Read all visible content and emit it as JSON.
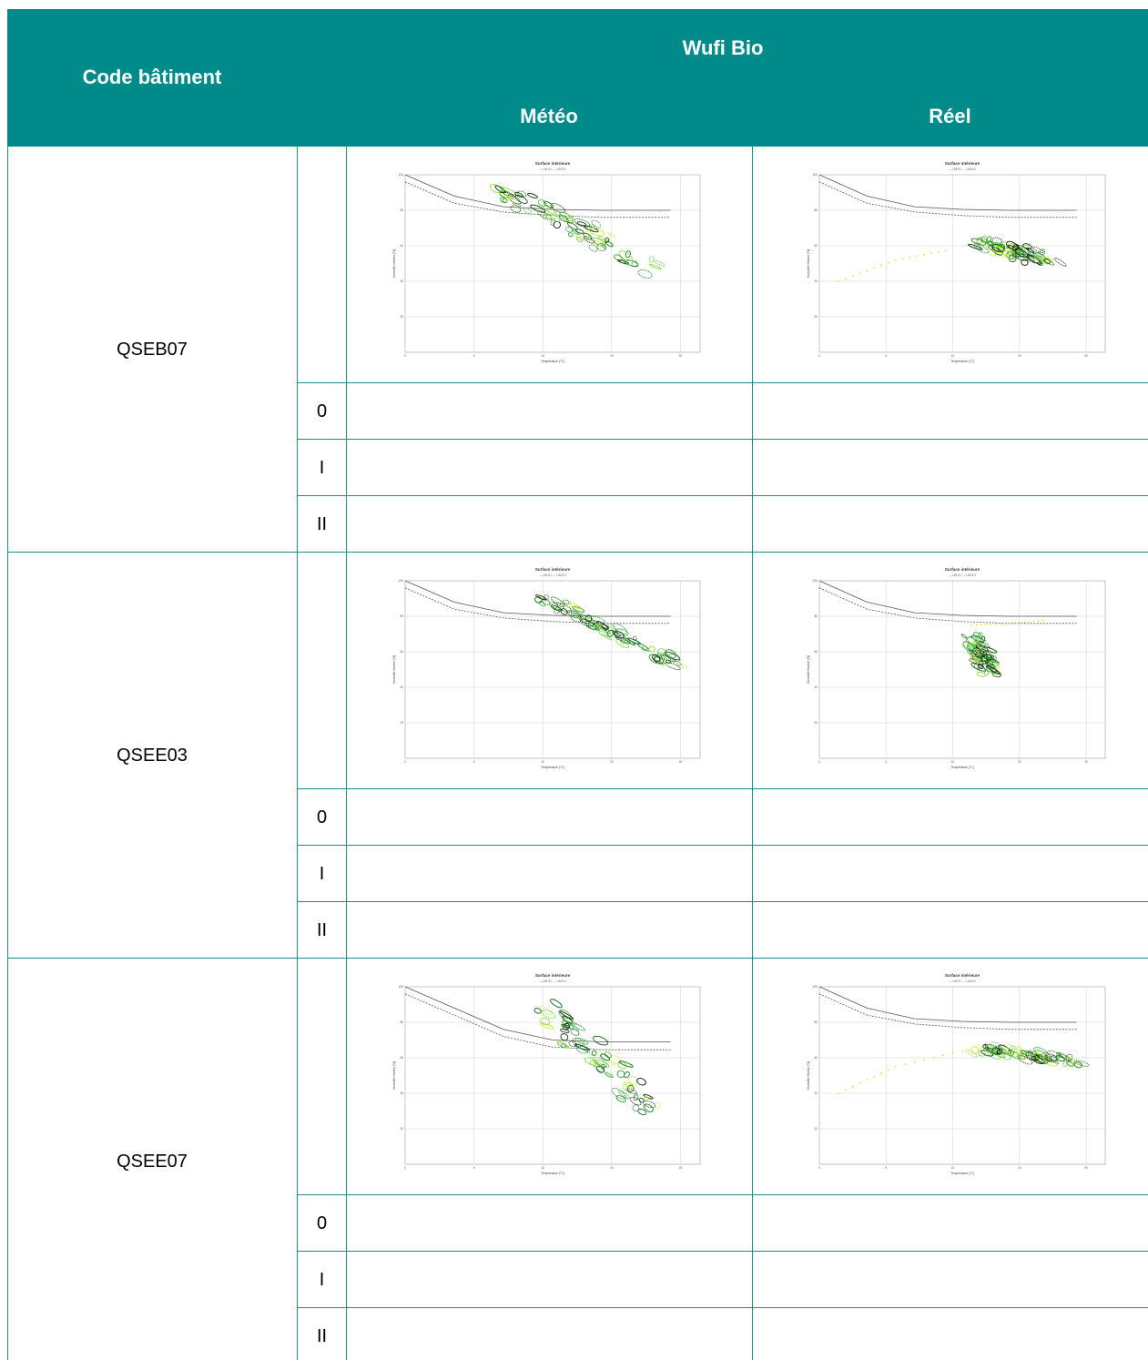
{
  "header": {
    "col_code": "Code bâtiment",
    "col_group": "Wufi Bio",
    "col_meteo": "Météo",
    "col_reel": "Réel"
  },
  "buildings": [
    {
      "code": "QSEB07",
      "classes": [
        "0",
        "I",
        "II"
      ]
    },
    {
      "code": "QSEE03",
      "classes": [
        "0",
        "I",
        "II"
      ]
    },
    {
      "code": "QSEE07",
      "classes": [
        "0",
        "I",
        "II"
      ]
    }
  ],
  "plot_text": {
    "title": "Surface intérieure",
    "legend": "— LIM B I   --- LIM B II",
    "xlabel": "Température [°C]",
    "ylabel": "Humidité relative [%]"
  },
  "chart_data": [
    {
      "type": "scatter",
      "title": "Surface intérieure",
      "xlabel": "Température [°C]",
      "ylabel": "Humidité relative [%]",
      "xlim": [
        0,
        30
      ],
      "ylim": [
        0,
        100
      ],
      "x_ticks": [
        "0",
        "5",
        "10",
        "15",
        "20"
      ],
      "y_ticks": [
        "20",
        "40",
        "60",
        "80",
        "100"
      ],
      "cloud": {
        "from": [
          10,
          92
        ],
        "to": [
          27,
          43
        ],
        "spread": 7
      },
      "curve_lim_b_i": [
        [
          0,
          100
        ],
        [
          5,
          88
        ],
        [
          10,
          82
        ],
        [
          15,
          80.5
        ],
        [
          20,
          80
        ],
        [
          27,
          80
        ]
      ],
      "curve_lim_b_ii": [
        [
          0,
          96
        ],
        [
          5,
          84
        ],
        [
          10,
          79
        ],
        [
          15,
          77
        ],
        [
          20,
          76
        ],
        [
          27,
          76
        ]
      ]
    },
    {
      "type": "scatter",
      "title": "Surface intérieure",
      "xlabel": "Température [°C]",
      "ylabel": "Humidité relative [%]",
      "xlim": [
        0,
        30
      ],
      "ylim": [
        0,
        100
      ],
      "x_ticks": [
        "0",
        "5",
        "10",
        "15",
        "20"
      ],
      "y_ticks": [
        "20",
        "40",
        "60",
        "80",
        "100"
      ],
      "cloud": {
        "from": [
          17,
          62
        ],
        "to": [
          24,
          52
        ],
        "spread": 6
      },
      "yellow_trail": [
        [
          2,
          40
        ],
        [
          8,
          52
        ],
        [
          14,
          58
        ]
      ],
      "curve_lim_b_i": [
        [
          0,
          100
        ],
        [
          5,
          88
        ],
        [
          10,
          82
        ],
        [
          15,
          80.5
        ],
        [
          20,
          80
        ],
        [
          27,
          80
        ]
      ],
      "curve_lim_b_ii": [
        [
          0,
          96
        ],
        [
          5,
          84
        ],
        [
          10,
          79
        ],
        [
          15,
          77
        ],
        [
          20,
          76
        ],
        [
          27,
          76
        ]
      ]
    },
    {
      "type": "scatter",
      "title": "Surface intérieure",
      "xlabel": "Température [°C]",
      "ylabel": "Humidité relative [%]",
      "xlim": [
        0,
        30
      ],
      "ylim": [
        0,
        100
      ],
      "x_ticks": [
        "0",
        "5",
        "10",
        "15",
        "20"
      ],
      "y_ticks": [
        "20",
        "40",
        "60",
        "80",
        "100"
      ],
      "cloud": {
        "from": [
          14,
          90
        ],
        "to": [
          28,
          53
        ],
        "spread": 4.5
      },
      "curve_lim_b_i": [
        [
          0,
          100
        ],
        [
          5,
          88
        ],
        [
          10,
          82
        ],
        [
          15,
          80.5
        ],
        [
          20,
          80
        ],
        [
          27,
          80
        ]
      ],
      "curve_lim_b_ii": [
        [
          0,
          96
        ],
        [
          5,
          84
        ],
        [
          10,
          79
        ],
        [
          15,
          77
        ],
        [
          20,
          76
        ],
        [
          27,
          76
        ]
      ]
    },
    {
      "type": "scatter",
      "title": "Surface intérieure",
      "xlabel": "Température [°C]",
      "ylabel": "Humidité relative [%]",
      "xlim": [
        0,
        30
      ],
      "ylim": [
        0,
        100
      ],
      "x_ticks": [
        "0",
        "5",
        "10",
        "15",
        "20"
      ],
      "y_ticks": [
        "20",
        "40",
        "60",
        "80",
        "100"
      ],
      "cloud": {
        "from": [
          16,
          68
        ],
        "to": [
          18,
          48
        ],
        "spread": 4
      },
      "yellow_trail": [
        [
          16,
          75
        ],
        [
          20,
          76
        ],
        [
          24,
          78
        ]
      ],
      "curve_lim_b_i": [
        [
          0,
          100
        ],
        [
          5,
          88
        ],
        [
          10,
          82
        ],
        [
          15,
          80.5
        ],
        [
          20,
          80
        ],
        [
          27,
          80
        ]
      ],
      "curve_lim_b_ii": [
        [
          0,
          96
        ],
        [
          5,
          84
        ],
        [
          10,
          79
        ],
        [
          15,
          77
        ],
        [
          20,
          76
        ],
        [
          27,
          76
        ]
      ]
    },
    {
      "type": "scatter",
      "title": "Surface intérieure",
      "xlabel": "Température [°C]",
      "ylabel": "Humidité relative [%]",
      "xlim": [
        0,
        30
      ],
      "ylim": [
        0,
        100
      ],
      "x_ticks": [
        "0",
        "5",
        "10",
        "15",
        "20"
      ],
      "y_ticks": [
        "20",
        "40",
        "60",
        "80",
        "100"
      ],
      "cloud": {
        "from": [
          14,
          88
        ],
        "to": [
          26,
          28
        ],
        "spread": 7
      },
      "curve_lim_b_i": [
        [
          0,
          100
        ],
        [
          5,
          88
        ],
        [
          10,
          76
        ],
        [
          15,
          70
        ],
        [
          20,
          69
        ],
        [
          27,
          69
        ]
      ],
      "curve_lim_b_ii": [
        [
          0,
          96
        ],
        [
          5,
          84
        ],
        [
          10,
          72
        ],
        [
          15,
          66
        ],
        [
          20,
          64.5
        ],
        [
          27,
          64.5
        ]
      ]
    },
    {
      "type": "scatter",
      "title": "Surface intérieure",
      "xlabel": "Température [°C]",
      "ylabel": "Humidité relative [%]",
      "xlim": [
        0,
        30
      ],
      "ylim": [
        0,
        100
      ],
      "x_ticks": [
        "0",
        "5",
        "10",
        "15",
        "20"
      ],
      "y_ticks": [
        "20",
        "40",
        "60",
        "80",
        "100"
      ],
      "cloud": {
        "from": [
          17,
          65
        ],
        "to": [
          27,
          58
        ],
        "spread": 5
      },
      "yellow_trail": [
        [
          2,
          40
        ],
        [
          8,
          55
        ],
        [
          16,
          65
        ]
      ],
      "curve_lim_b_i": [
        [
          0,
          100
        ],
        [
          5,
          88
        ],
        [
          10,
          82
        ],
        [
          15,
          80.5
        ],
        [
          20,
          80
        ],
        [
          27,
          80
        ]
      ],
      "curve_lim_b_ii": [
        [
          0,
          96
        ],
        [
          5,
          84
        ],
        [
          10,
          79
        ],
        [
          15,
          77
        ],
        [
          20,
          76
        ],
        [
          27,
          76
        ]
      ]
    }
  ]
}
